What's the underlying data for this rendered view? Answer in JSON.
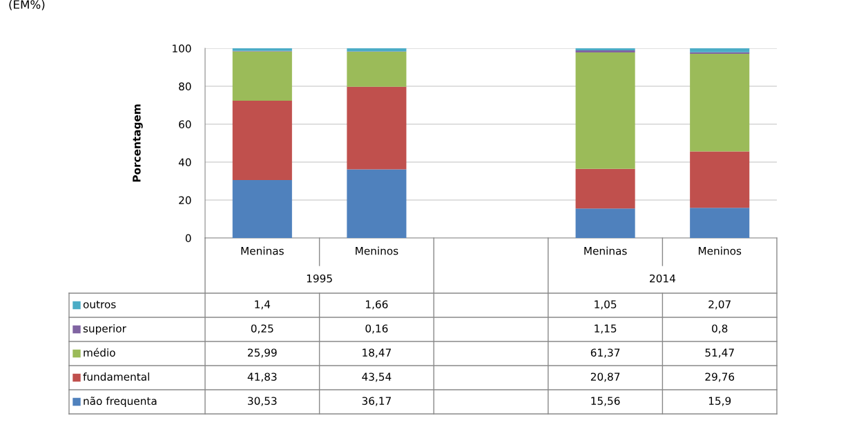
{
  "chart_data": {
    "type": "bar",
    "stacked": true,
    "ylabel": "Porcentagem",
    "annotations": [
      "(EM%)",
      "1995",
      "2014"
    ],
    "categories": [
      "Meninas",
      "Meninos",
      null,
      "Meninas",
      "Meninos"
    ],
    "series": [
      {
        "name": "não frequenta",
        "color": "#4f81bd",
        "values": [
          30.53,
          36.17,
          null,
          15.56,
          15.9
        ],
        "value_labels": [
          "30,53",
          "36,17",
          null,
          "15,56",
          "15,9"
        ]
      },
      {
        "name": "fundamental",
        "color": "#c0504d",
        "values": [
          41.83,
          43.54,
          null,
          20.87,
          29.76
        ],
        "value_labels": [
          "41,83",
          "43,54",
          null,
          "20,87",
          "29,76"
        ]
      },
      {
        "name": "médio",
        "color": "#9bbb59",
        "values": [
          25.99,
          18.47,
          null,
          61.37,
          51.47
        ],
        "value_labels": [
          "25,99",
          "18,47",
          null,
          "61,37",
          "51,47"
        ]
      },
      {
        "name": "superior",
        "color": "#8064a2",
        "values": [
          0.25,
          0.16,
          null,
          1.15,
          0.8
        ],
        "value_labels": [
          "0,25",
          "0,16",
          null,
          "1,15",
          "0,8"
        ]
      },
      {
        "name": "outros",
        "color": "#4bacc6",
        "values": [
          1.4,
          1.66,
          null,
          1.05,
          2.07
        ],
        "value_labels": [
          "1,4",
          "1,66",
          null,
          "1,05",
          "2,07"
        ]
      }
    ],
    "ylim": [
      0,
      100
    ],
    "yticks": [
      0,
      20,
      40,
      60,
      80,
      100
    ],
    "grid": "y",
    "legend": "left"
  }
}
